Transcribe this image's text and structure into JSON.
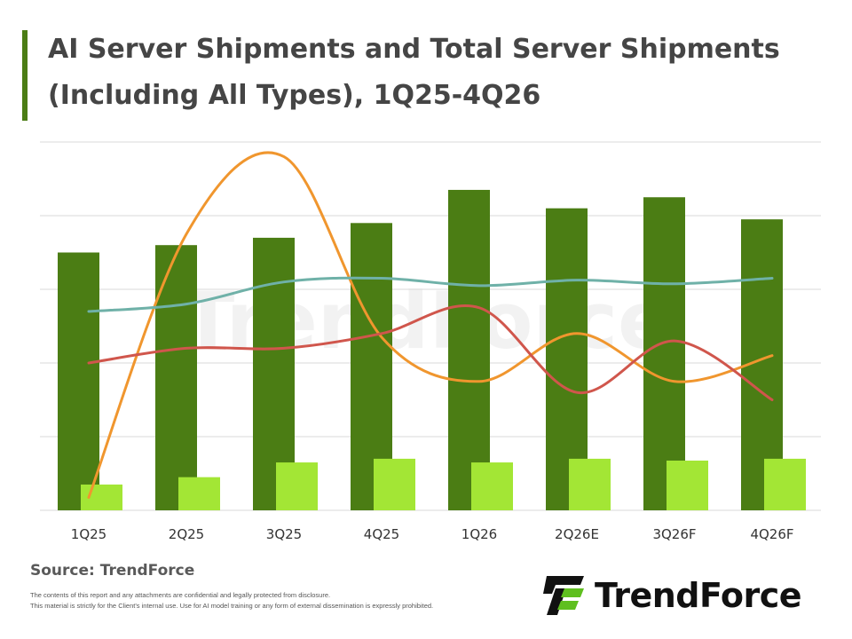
{
  "header": {
    "title": "AI Server Shipments and Total Server Shipments (Including All Types), 1Q25-4Q26"
  },
  "footer": {
    "source": "Source: TrendForce",
    "disclaimer_line1": "The contents of this report and any attachments are confidential and legally protected from disclosure.",
    "disclaimer_line2": "This material is strictly for the Client's internal use. Use for AI model training or any form of external dissemination is expressly prohibited.",
    "brand_name": "TrendForce",
    "watermark": "TrendForce"
  },
  "colors": {
    "accent": "#4b7d14",
    "total_bar": "#4b7d14",
    "ai_bar": "#a3e635",
    "line_orange": "#f0962e",
    "line_teal": "#6fb1a8",
    "line_red": "#d0564c",
    "grid": "#d9d9d9"
  },
  "chart_data": {
    "type": "bar",
    "categories": [
      "1Q25",
      "2Q25",
      "3Q25",
      "4Q25",
      "1Q26",
      "2Q26E",
      "3Q26F",
      "4Q26F"
    ],
    "ylim": [
      0,
      10
    ],
    "grid": true,
    "series": [
      {
        "kind": "bar",
        "color": "#4b7d14",
        "values": [
          7.0,
          7.2,
          7.4,
          7.8,
          8.7,
          8.2,
          8.5,
          7.9
        ]
      },
      {
        "kind": "bar",
        "color": "#a3e635",
        "values": [
          0.7,
          0.9,
          1.3,
          1.4,
          1.3,
          1.4,
          1.35,
          1.4
        ]
      },
      {
        "kind": "line",
        "color": "#f0962e",
        "values": [
          0.35,
          7.5,
          9.6,
          4.7,
          3.5,
          4.8,
          3.5,
          4.2
        ]
      },
      {
        "kind": "line",
        "color": "#6fb1a8",
        "values": [
          5.4,
          5.6,
          6.2,
          6.3,
          6.1,
          6.25,
          6.15,
          6.3
        ]
      },
      {
        "kind": "line",
        "color": "#d0564c",
        "values": [
          4.0,
          4.4,
          4.4,
          4.8,
          5.5,
          3.2,
          4.6,
          3.0
        ]
      }
    ]
  }
}
